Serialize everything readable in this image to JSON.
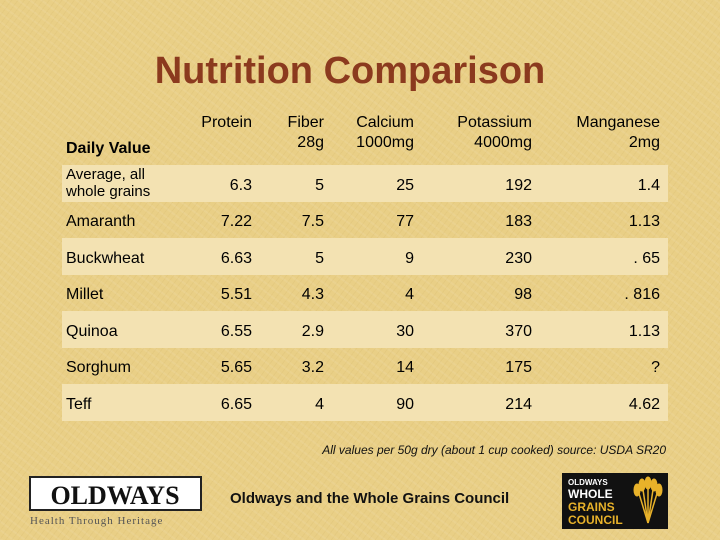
{
  "title": "Nutrition Comparison",
  "table": {
    "corner_label": "Daily Value",
    "columns": [
      {
        "name": "Protein",
        "daily_value": ""
      },
      {
        "name": "Fiber",
        "daily_value": "28g"
      },
      {
        "name": "Calcium",
        "daily_value": "1000mg"
      },
      {
        "name": "Potassium",
        "daily_value": "4000mg"
      },
      {
        "name": "Manganese",
        "daily_value": "2mg"
      }
    ],
    "rows": [
      {
        "label": "Average, all whole grains",
        "values": [
          "6.3",
          "5",
          "25",
          "192",
          "1.4"
        ]
      },
      {
        "label": "Amaranth",
        "values": [
          "7.22",
          "7.5",
          "77",
          "183",
          "1.13"
        ]
      },
      {
        "label": "Buckwheat",
        "values": [
          "6.63",
          "5",
          "9",
          "230",
          ". 65"
        ]
      },
      {
        "label": "Millet",
        "values": [
          "5.51",
          "4.3",
          "4",
          "98",
          ". 816"
        ]
      },
      {
        "label": "Quinoa",
        "values": [
          "6.55",
          "2.9",
          "30",
          "370",
          "1.13"
        ]
      },
      {
        "label": "Sorghum",
        "values": [
          "5.65",
          "3.2",
          "14",
          "175",
          "?"
        ]
      },
      {
        "label": "Teff",
        "values": [
          "6.65",
          "4",
          "90",
          "214",
          "4.62"
        ]
      }
    ]
  },
  "footnote": "All values per 50g dry (about 1 cup cooked) source: USDA SR20",
  "credit": "Oldways and the Whole Grains Council",
  "logos": {
    "oldways": {
      "name": "OLDWAYS",
      "tagline": "Health Through Heritage"
    },
    "wgc": {
      "lines": [
        "OLDWAYS",
        "WHOLE",
        "GRAINS",
        "COUNCIL"
      ]
    }
  },
  "colors": {
    "title": "#8b3a1e",
    "background": "#e9cf86",
    "band": "#f3e2b2",
    "wgc_accent": "#e8b22a"
  }
}
